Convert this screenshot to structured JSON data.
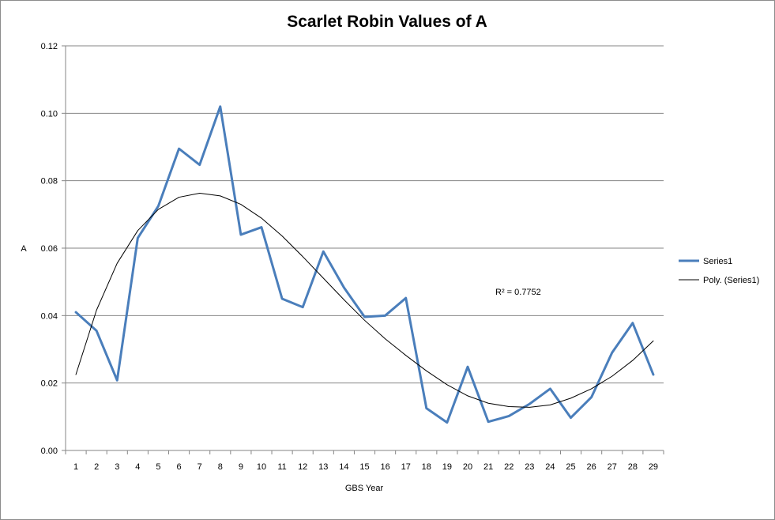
{
  "chart_data": {
    "type": "line",
    "title": "Scarlet Robin Values of A",
    "xlabel": "GBS Year",
    "ylabel": "A",
    "x": [
      1,
      2,
      3,
      4,
      5,
      6,
      7,
      8,
      9,
      10,
      11,
      12,
      13,
      14,
      15,
      16,
      17,
      18,
      19,
      20,
      21,
      22,
      23,
      24,
      25,
      26,
      27,
      28,
      29
    ],
    "ylim": [
      0,
      0.12
    ],
    "yticks": [
      "0.00",
      "0.02",
      "0.04",
      "0.06",
      "0.08",
      "0.10",
      "0.12"
    ],
    "yticks_values": [
      0,
      0.02,
      0.04,
      0.06,
      0.08,
      0.1,
      0.12
    ],
    "grid": true,
    "legend_position": "right",
    "series": [
      {
        "name": "Series1",
        "kind": "data",
        "color": "#4a7ebb",
        "values": [
          0.041,
          0.0355,
          0.0208,
          0.063,
          0.0725,
          0.0895,
          0.0847,
          0.102,
          0.064,
          0.0662,
          0.045,
          0.0425,
          0.059,
          0.0483,
          0.0396,
          0.04,
          0.0452,
          0.0125,
          0.0083,
          0.0248,
          0.0085,
          0.0102,
          0.0138,
          0.0183,
          0.0097,
          0.0158,
          0.029,
          0.0378,
          0.0225
        ]
      },
      {
        "name": "Poly. (Series1)",
        "kind": "trendline",
        "color": "#000000",
        "values": [
          0.0225,
          0.0416,
          0.0555,
          0.0652,
          0.0715,
          0.0751,
          0.0763,
          0.0755,
          0.073,
          0.0689,
          0.0636,
          0.0575,
          0.0511,
          0.0447,
          0.0386,
          0.0331,
          0.0282,
          0.0236,
          0.0195,
          0.0162,
          0.014,
          0.013,
          0.0128,
          0.0135,
          0.0155,
          0.0183,
          0.022,
          0.0267,
          0.0325
        ]
      }
    ],
    "annotation": "R² = 0.7752"
  }
}
